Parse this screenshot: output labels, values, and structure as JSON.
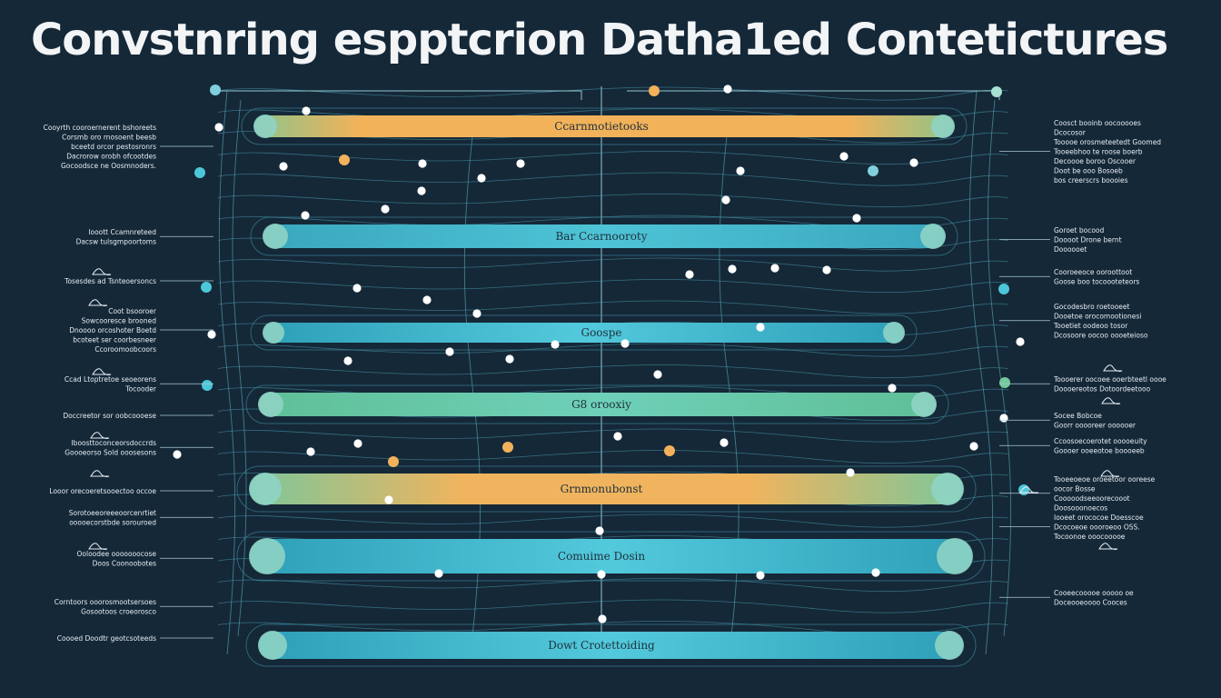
{
  "title": "Convstnring espptcrion Datha1ed Contetictures",
  "colors": {
    "background": "#152838",
    "gold": "#f2b25a",
    "teal": "#3fb9c9",
    "cyan": "#4cc7d9",
    "green": "#74c89a",
    "line": "#5fb7c7"
  },
  "lanes": [
    {
      "label": "Ccarnmotietooks",
      "style": "gold"
    },
    {
      "label": "Bar Ccarnooroty",
      "style": "teal"
    },
    {
      "label": "Goospe",
      "style": "cyan"
    },
    {
      "label": "G8 orooxiy",
      "style": "green"
    },
    {
      "label": "Grnmonubonst",
      "style": "gold-green"
    },
    {
      "label": "Comuime Dosin",
      "style": "cyan"
    },
    {
      "label": "Dowt Crotettoiding",
      "style": "cyan"
    }
  ],
  "left_notes": [
    {
      "lines": [
        "Cooyrth  cooroernerent bshoreets",
        "Corsmb  oro rnosoent  beesb",
        "bceetd  orcor pestosronrs",
        "Dacrorow orobh ofcootdes",
        "Gocoodsce  ne  Oosmnoders."
      ]
    },
    {
      "lines": [
        "Iooott  Ccamnreteed",
        "Dacsw  tulsgmpoortoms"
      ]
    },
    {
      "lines": [
        "Tosesdes ad  Tsnteoersoncs"
      ]
    },
    {
      "lines": [
        "Coot bsooroer",
        "Sowcooresce brooned",
        "Dnoooo orcoshoter Boetd",
        "bcoteet ser coorbesneer",
        "Ccoroomoobcoors"
      ]
    },
    {
      "lines": [
        "Ccad  Ltoptretoe seoeorens",
        "Tocooder"
      ]
    },
    {
      "lines": [
        "Doccreetor sor oobcoooese"
      ]
    },
    {
      "lines": [
        "Iboosttoconceorsdoccrds",
        "Goooeorso  Sold  ooosesons"
      ]
    },
    {
      "lines": [
        "Looor orecoeretsooectoo occoe"
      ]
    },
    {
      "lines": [
        "Sorotoeeoreeeoorcenrtiet",
        "ooooecorstbde sorouroed"
      ]
    },
    {
      "lines": [
        "Ooloodee  ooooooocose",
        "Doos  Coonoobotes"
      ]
    },
    {
      "lines": [
        "Corntoors ooorosmootsersoes",
        "Gosootoos  croeorosco"
      ]
    },
    {
      "lines": [
        "Coooed  Doodtr geotcsoteeds"
      ]
    }
  ],
  "right_notes": [
    {
      "lines": [
        "Coosct booinb oocooooes",
        "Dcocosor",
        "Tooooe  orosmeteetedt Goomed",
        "Tooeebhoo te  roose  boerb",
        "Decoooe boroo  Oscooer",
        "Doot be  ooo  Bosoeb",
        "bos creerscrs boooies"
      ]
    },
    {
      "lines": [
        "Goroet bocood",
        "Doooot Drone bernt",
        "Doooooet"
      ]
    },
    {
      "lines": [
        "Cooroeeoce ooroottoot",
        "Goose  boo  tocoooteteors"
      ]
    },
    {
      "lines": [
        "Gocodesbro  roetooeet",
        "Dooetoe orocomootionesi",
        "Tooetiet  oodeoo  tosor",
        "Dcosoore oocoo  oooeteioso"
      ]
    },
    {
      "lines": [
        "Toooerer  oocoee ooerbteetl oooe",
        "Doooereotos  Dotoordeetooo"
      ]
    },
    {
      "lines": [
        "Socee  Bobcoe",
        "Goorr ooooreer  oooooer"
      ]
    },
    {
      "lines": [
        "Ccoosoecoerotet  ooooeuity",
        "Goooer ooeeotoe boooeeb"
      ]
    },
    {
      "lines": [
        "Tooeeoeoe  oroeetoor ooreese",
        "oocor  Bosse",
        "Cooooodseeoorecooot",
        "Doosooonoecos"
      ]
    },
    {
      "lines": [
        "Iooeet  orococoe  Doesscoe",
        "Dcocoeoe oooroeoo  OSS.",
        "Tocoonoe  ooocooooe"
      ]
    },
    {
      "lines": [
        "Cooeecooooe ooooo  oe",
        "Doceooeoooo Cooces"
      ]
    }
  ]
}
